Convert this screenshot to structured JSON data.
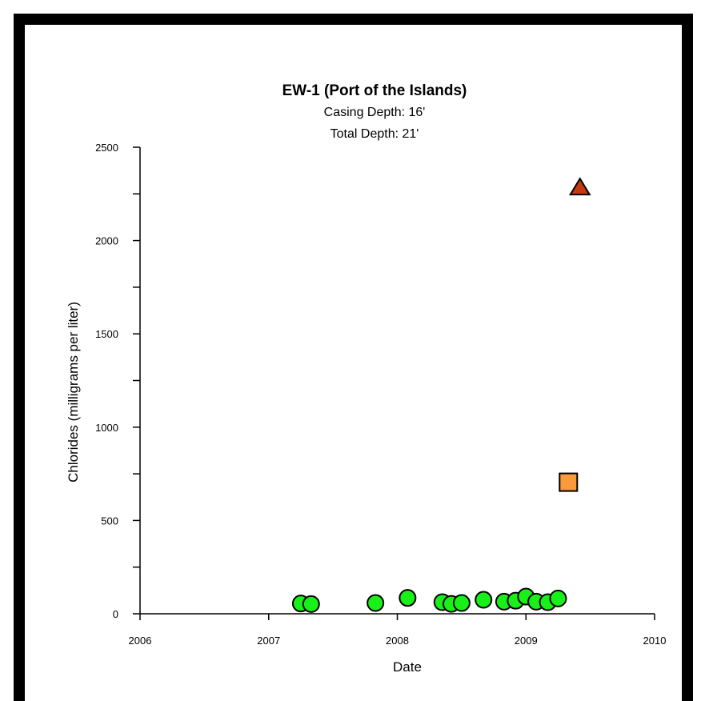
{
  "chart_data": {
    "type": "scatter",
    "title": "EW-1 (Port of the Islands)",
    "subtitle_lines": [
      "Casing Depth:  16'",
      "Total Depth:  21'"
    ],
    "xlabel": "Date",
    "ylabel": "Chlorides (milligrams per liter)",
    "xlim": [
      2006,
      2010
    ],
    "ylim": [
      0,
      2500
    ],
    "x_ticks": [
      "2006",
      "2007",
      "2008",
      "2009",
      "2010"
    ],
    "y_ticks": [
      "0",
      "500",
      "1000",
      "1500",
      "2000",
      "2500"
    ],
    "series": [
      {
        "marker": "circle",
        "color": "#19f019",
        "points": [
          {
            "x": 2007.25,
            "y": 55
          },
          {
            "x": 2007.33,
            "y": 52
          },
          {
            "x": 2007.83,
            "y": 58
          },
          {
            "x": 2008.08,
            "y": 85
          },
          {
            "x": 2008.35,
            "y": 62
          },
          {
            "x": 2008.42,
            "y": 53
          },
          {
            "x": 2008.5,
            "y": 58
          },
          {
            "x": 2008.67,
            "y": 75
          },
          {
            "x": 2008.83,
            "y": 65
          },
          {
            "x": 2008.92,
            "y": 70
          },
          {
            "x": 2009.0,
            "y": 92
          },
          {
            "x": 2009.08,
            "y": 65
          },
          {
            "x": 2009.17,
            "y": 62
          },
          {
            "x": 2009.25,
            "y": 82
          }
        ]
      },
      {
        "marker": "square",
        "color": "#f99a3c",
        "points": [
          {
            "x": 2009.33,
            "y": 705
          }
        ]
      },
      {
        "marker": "triangle",
        "color": "#c63a12",
        "points": [
          {
            "x": 2009.42,
            "y": 2285
          }
        ]
      }
    ]
  }
}
